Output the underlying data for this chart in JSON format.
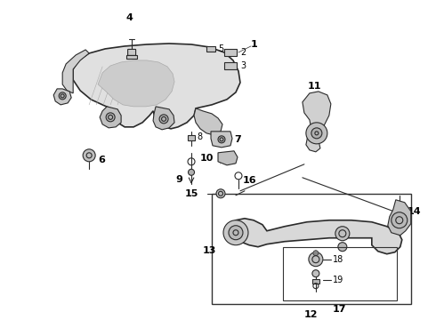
{
  "bg_color": "#ffffff",
  "line_color": "#2a2a2a",
  "label_color": "#000000",
  "figsize": [
    4.9,
    3.6
  ],
  "dpi": 100,
  "label_fontsize": 7,
  "label_bold_fontsize": 8
}
